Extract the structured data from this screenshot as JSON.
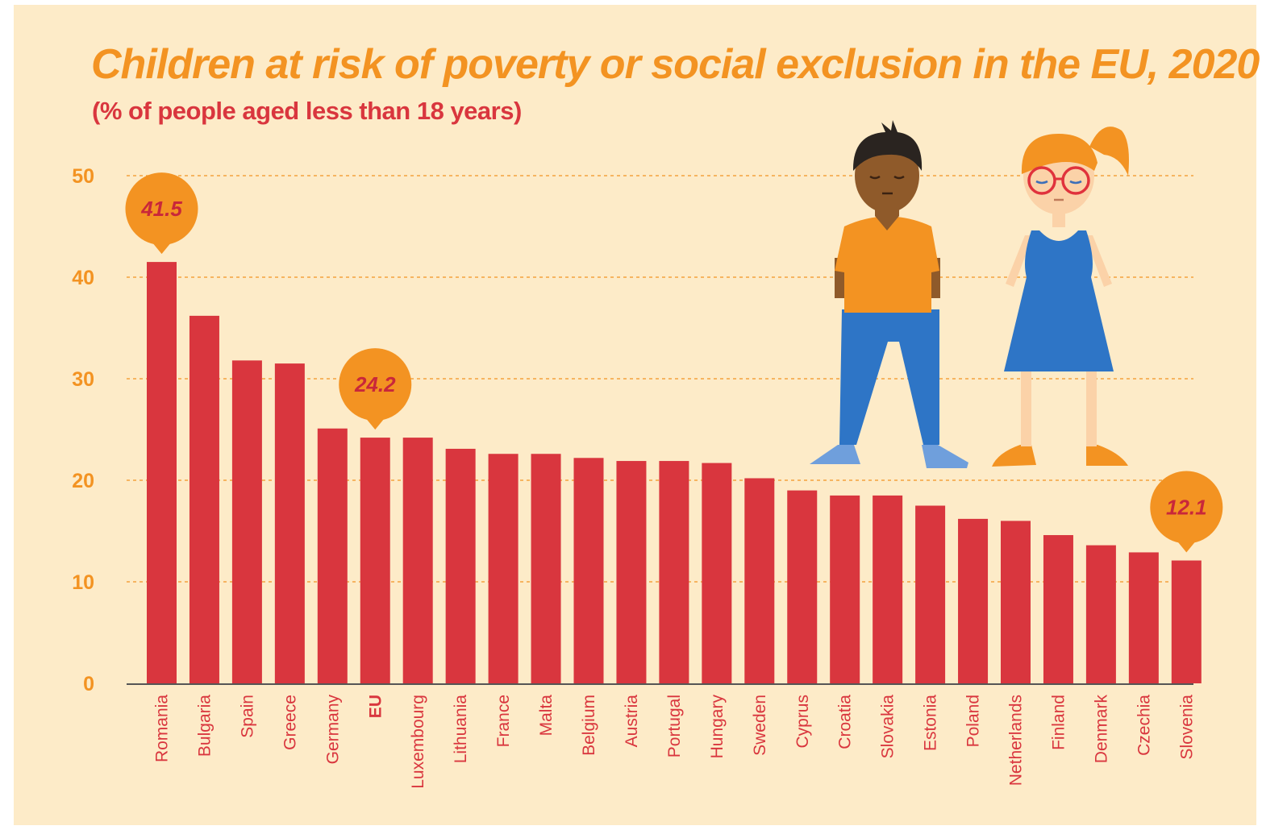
{
  "chart_data": {
    "type": "bar",
    "title": "Children at risk of poverty or social exclusion in the EU, 2020",
    "subtitle": "(% of people aged less than 18 years)",
    "categories": [
      "Romania",
      "Bulgaria",
      "Spain",
      "Greece",
      "Germany",
      "EU",
      "Luxembourg",
      "Lithuania",
      "France",
      "Malta",
      "Belgium",
      "Austria",
      "Portugal",
      "Hungary",
      "Sweden",
      "Cyprus",
      "Croatia",
      "Slovakia",
      "Estonia",
      "Poland",
      "Netherlands",
      "Finland",
      "Denmark",
      "Czechia",
      "Slovenia"
    ],
    "values": [
      41.5,
      36.2,
      31.8,
      31.5,
      25.1,
      24.2,
      24.2,
      23.1,
      22.6,
      22.6,
      22.2,
      21.9,
      21.9,
      21.7,
      20.2,
      19.0,
      18.5,
      18.5,
      17.5,
      16.2,
      16.0,
      14.6,
      13.6,
      12.9,
      12.1
    ],
    "highlight_category": "EU",
    "callouts": [
      {
        "category": "Romania",
        "label": "41.5"
      },
      {
        "category": "EU",
        "label": "24.2"
      },
      {
        "category": "Slovenia",
        "label": "12.1"
      }
    ],
    "ylim": [
      0,
      50
    ],
    "yticks": [
      0,
      10,
      20,
      30,
      40,
      50
    ],
    "ytick_labels": [
      "0",
      "10",
      "20",
      "30",
      "40",
      "50"
    ],
    "grid": true,
    "colors": {
      "background": "#fdebc8",
      "bar": "#d9363e",
      "accent": "#f39322",
      "grid": "#f39322",
      "axis": "#555555"
    }
  },
  "illustration": {
    "icons": [
      "boy-illustration",
      "girl-illustration"
    ]
  }
}
